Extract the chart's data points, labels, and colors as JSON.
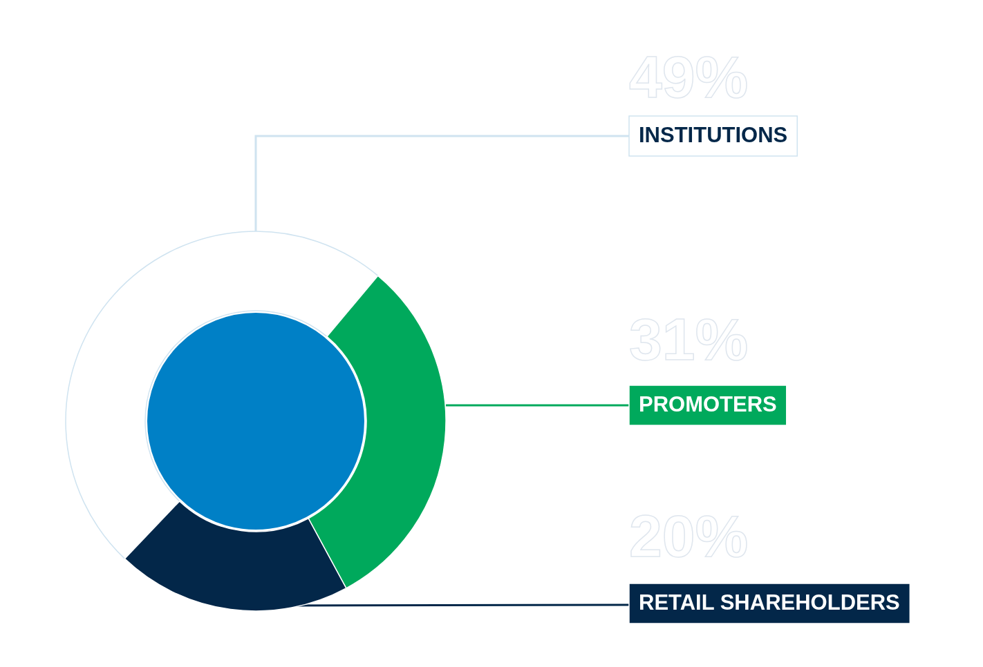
{
  "chart_data": {
    "type": "donut",
    "categories": [
      "INSTITUTIONS",
      "PROMOTERS",
      "RETAIL SHAREHOLDERS"
    ],
    "values": [
      49,
      31,
      20
    ],
    "colors": [
      "#ffffff",
      "#00a95c",
      "#032749"
    ],
    "value_labels": [
      "49%",
      "31%",
      "20%"
    ]
  }
}
